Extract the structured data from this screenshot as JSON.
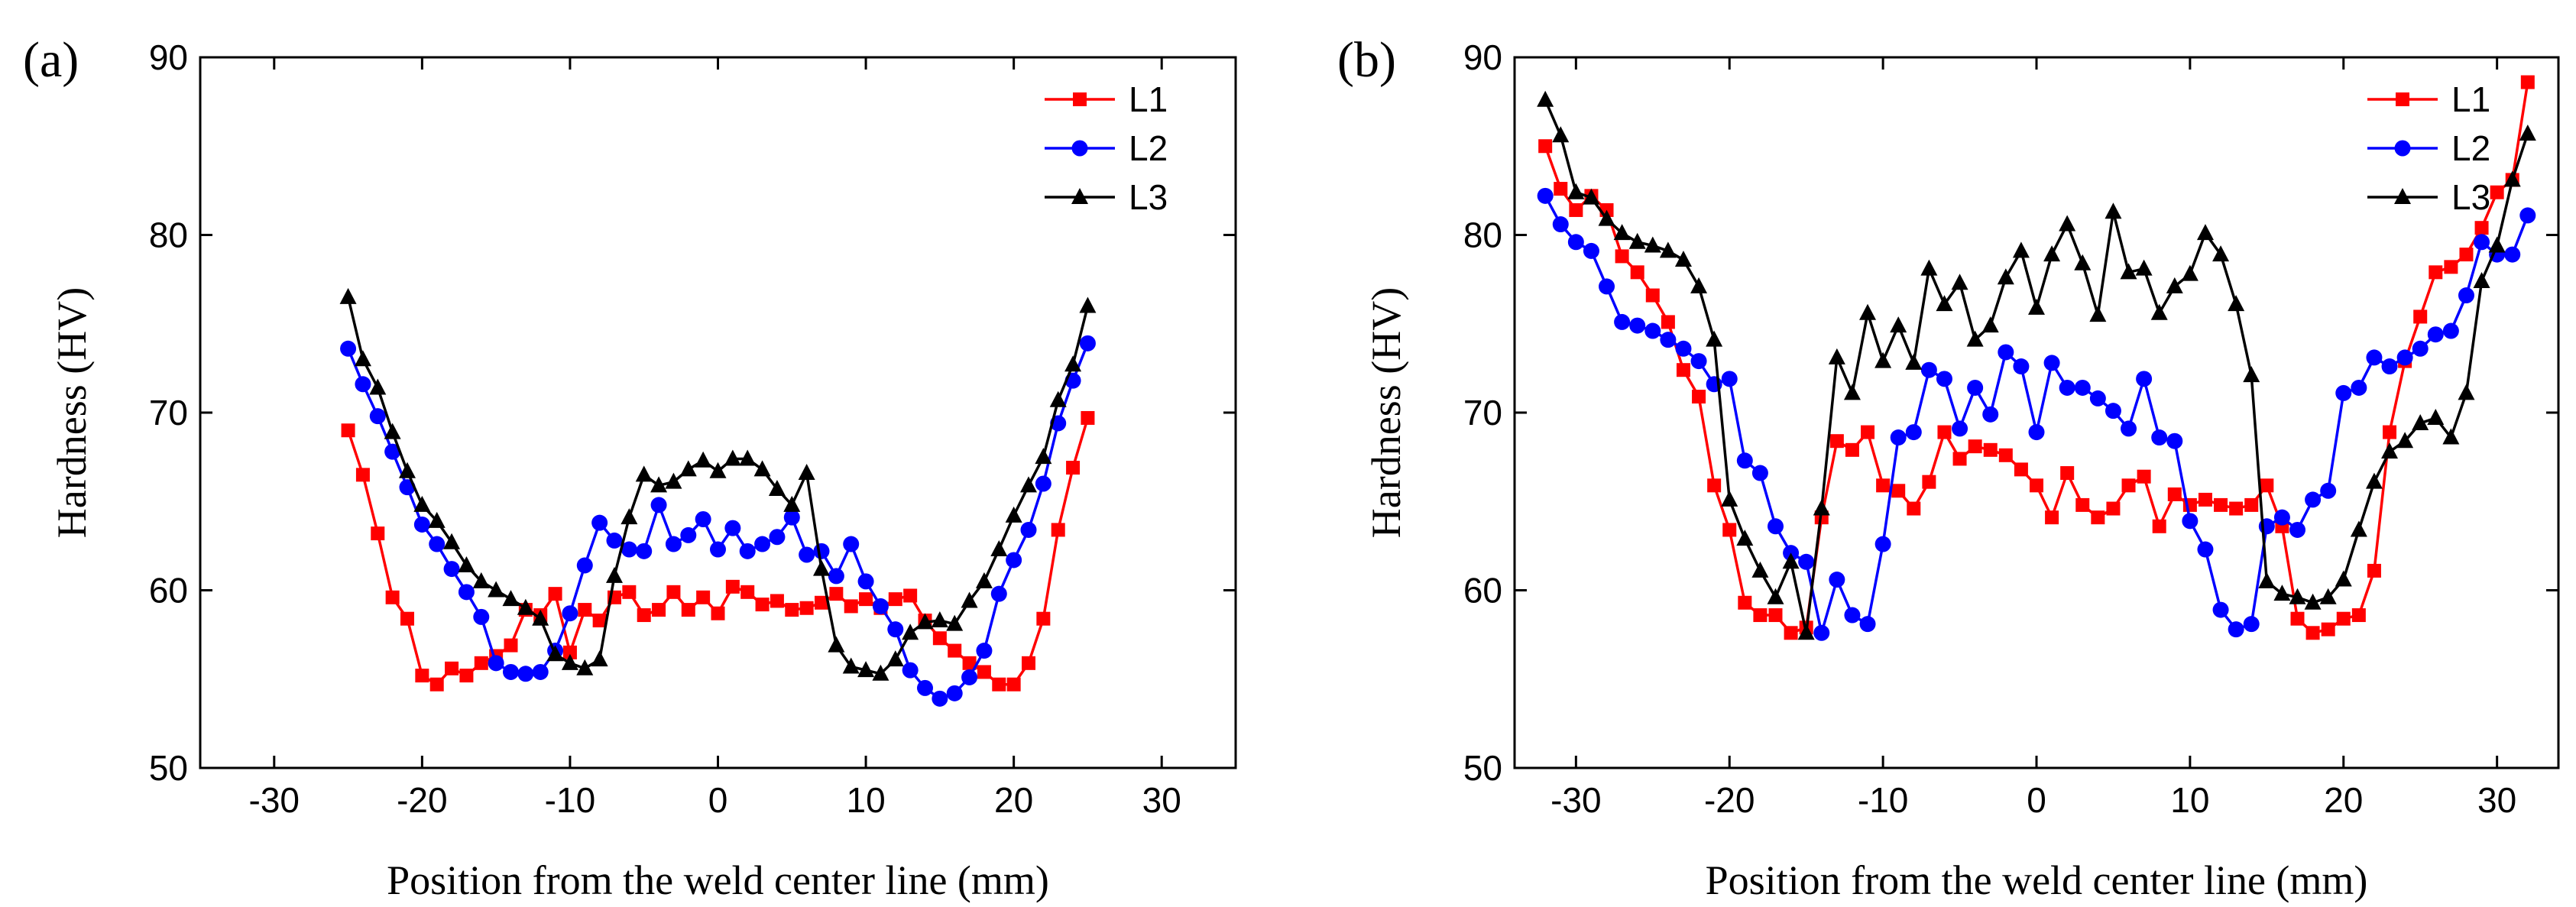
{
  "chart_data": [
    {
      "panel_label": "(a)",
      "type": "line",
      "xlabel": "Position from the weld center line (mm)",
      "ylabel": "Hardness (HV)",
      "xlim": [
        -35,
        35
      ],
      "ylim": [
        50,
        90
      ],
      "xticks": [
        -30,
        -20,
        -10,
        0,
        10,
        20,
        30
      ],
      "yticks": [
        50,
        60,
        70,
        80,
        90
      ],
      "legend_position": "top-right",
      "series": [
        {
          "name": "L1",
          "color": "#ff0000",
          "marker": "square",
          "x": [
            -25,
            -24,
            -23,
            -22,
            -21,
            -20,
            -19,
            -18,
            -17,
            -16,
            -15,
            -14,
            -13,
            -12,
            -11,
            -10,
            -9,
            -8,
            -7,
            -6,
            -5,
            -4,
            -3,
            -2,
            -1,
            0,
            1,
            2,
            3,
            4,
            5,
            6,
            7,
            8,
            9,
            10,
            11,
            12,
            13,
            14,
            15,
            16,
            17,
            18,
            19,
            20,
            21,
            22,
            23,
            24,
            25
          ],
          "y": [
            69.0,
            66.5,
            63.2,
            59.6,
            58.4,
            55.2,
            54.7,
            55.6,
            55.2,
            55.9,
            56.3,
            56.9,
            58.9,
            58.6,
            59.8,
            56.5,
            58.9,
            58.3,
            59.6,
            59.9,
            58.6,
            58.9,
            59.9,
            58.9,
            59.6,
            58.7,
            60.2,
            59.9,
            59.2,
            59.4,
            58.9,
            59.0,
            59.3,
            59.8,
            59.1,
            59.5,
            59.0,
            59.5,
            59.7,
            58.3,
            57.3,
            56.6,
            55.9,
            55.4,
            54.7,
            54.7,
            55.9,
            58.4,
            63.4,
            66.9,
            69.7
          ]
        },
        {
          "name": "L2",
          "color": "#0000ff",
          "marker": "circle",
          "x": [
            -25,
            -24,
            -23,
            -22,
            -21,
            -20,
            -19,
            -18,
            -17,
            -16,
            -15,
            -14,
            -13,
            -12,
            -11,
            -10,
            -9,
            -8,
            -7,
            -6,
            -5,
            -4,
            -3,
            -2,
            -1,
            0,
            1,
            2,
            3,
            4,
            5,
            6,
            7,
            8,
            9,
            10,
            11,
            12,
            13,
            14,
            15,
            16,
            17,
            18,
            19,
            20,
            21,
            22,
            23,
            24,
            25
          ],
          "y": [
            73.6,
            71.6,
            69.8,
            67.8,
            65.8,
            63.7,
            62.6,
            61.2,
            59.9,
            58.5,
            55.9,
            55.4,
            55.3,
            55.4,
            56.6,
            58.7,
            61.4,
            63.8,
            62.8,
            62.3,
            62.2,
            64.8,
            62.6,
            63.1,
            64.0,
            62.3,
            63.5,
            62.2,
            62.6,
            63.0,
            64.1,
            62.0,
            62.2,
            60.8,
            62.6,
            60.5,
            59.1,
            57.8,
            55.5,
            54.5,
            53.9,
            54.2,
            55.1,
            56.6,
            59.8,
            61.7,
            63.4,
            66.0,
            69.4,
            71.8,
            73.9
          ]
        },
        {
          "name": "L3",
          "color": "#000000",
          "marker": "triangle",
          "x": [
            -25,
            -24,
            -23,
            -22,
            -21,
            -20,
            -19,
            -18,
            -17,
            -16,
            -15,
            -14,
            -13,
            -12,
            -11,
            -10,
            -9,
            -8,
            -7,
            -6,
            -5,
            -4,
            -3,
            -2,
            -1,
            0,
            1,
            2,
            3,
            4,
            5,
            6,
            7,
            8,
            9,
            10,
            11,
            12,
            13,
            14,
            15,
            16,
            17,
            18,
            19,
            20,
            21,
            22,
            23,
            24,
            25
          ],
          "y": [
            76.5,
            73.0,
            71.4,
            68.9,
            66.7,
            64.8,
            63.9,
            62.7,
            61.4,
            60.5,
            60.0,
            59.5,
            59.0,
            58.4,
            56.4,
            55.9,
            55.6,
            56.1,
            60.8,
            64.1,
            66.5,
            65.9,
            66.1,
            66.8,
            67.3,
            66.7,
            67.4,
            67.4,
            66.8,
            65.7,
            64.8,
            66.6,
            61.2,
            56.9,
            55.7,
            55.5,
            55.3,
            56.1,
            57.6,
            58.2,
            58.3,
            58.1,
            59.4,
            60.5,
            62.3,
            64.2,
            65.9,
            67.5,
            70.7,
            72.7,
            76.0
          ]
        }
      ]
    },
    {
      "panel_label": "(b)",
      "type": "line",
      "xlabel": "Position from the weld center line (mm)",
      "ylabel": "Hardness (HV)",
      "xlim": [
        -34,
        34
      ],
      "ylim": [
        50,
        90
      ],
      "xticks": [
        -30,
        -20,
        -10,
        0,
        10,
        20,
        30
      ],
      "yticks": [
        50,
        60,
        70,
        80,
        90
      ],
      "legend_position": "top-right",
      "series": [
        {
          "name": "L1",
          "color": "#ff0000",
          "marker": "square",
          "x": [
            -32,
            -31,
            -30,
            -29,
            -28,
            -27,
            -26,
            -25,
            -24,
            -23,
            -22,
            -21,
            -20,
            -19,
            -18,
            -17,
            -16,
            -15,
            -14,
            -13,
            -12,
            -11,
            -10,
            -9,
            -8,
            -7,
            -6,
            -5,
            -4,
            -3,
            -2,
            -1,
            0,
            1,
            2,
            3,
            4,
            5,
            6,
            7,
            8,
            9,
            10,
            11,
            12,
            13,
            14,
            15,
            16,
            17,
            18,
            19,
            20,
            21,
            22,
            23,
            24,
            25,
            26,
            27,
            28,
            29,
            30,
            31,
            32
          ],
          "y": [
            85.0,
            82.6,
            81.4,
            82.2,
            81.4,
            78.8,
            77.9,
            76.6,
            75.1,
            72.4,
            70.9,
            65.9,
            63.4,
            59.3,
            58.6,
            58.6,
            57.6,
            57.9,
            64.1,
            68.4,
            67.9,
            68.9,
            65.9,
            65.6,
            64.6,
            66.1,
            68.9,
            67.4,
            68.1,
            67.9,
            67.6,
            66.8,
            65.9,
            64.1,
            66.6,
            64.8,
            64.1,
            64.6,
            65.9,
            66.4,
            63.6,
            65.4,
            64.8,
            65.1,
            64.8,
            64.6,
            64.8,
            65.9,
            63.6,
            58.4,
            57.6,
            57.8,
            58.4,
            58.6,
            61.1,
            68.9,
            72.9,
            75.4,
            77.9,
            78.2,
            78.9,
            80.4,
            82.4,
            83.1,
            88.6
          ]
        },
        {
          "name": "L2",
          "color": "#0000ff",
          "marker": "circle",
          "x": [
            -32,
            -31,
            -30,
            -29,
            -28,
            -27,
            -26,
            -25,
            -24,
            -23,
            -22,
            -21,
            -20,
            -19,
            -18,
            -17,
            -16,
            -15,
            -14,
            -13,
            -12,
            -11,
            -10,
            -9,
            -8,
            -7,
            -6,
            -5,
            -4,
            -3,
            -2,
            -1,
            0,
            1,
            2,
            3,
            4,
            5,
            6,
            7,
            8,
            9,
            10,
            11,
            12,
            13,
            14,
            15,
            16,
            17,
            18,
            19,
            20,
            21,
            22,
            23,
            24,
            25,
            26,
            27,
            28,
            29,
            30,
            31,
            32
          ],
          "y": [
            82.2,
            80.6,
            79.6,
            79.1,
            77.1,
            75.1,
            74.9,
            74.6,
            74.1,
            73.6,
            72.9,
            71.6,
            71.9,
            67.3,
            66.6,
            63.6,
            62.1,
            61.6,
            57.6,
            60.6,
            58.6,
            58.1,
            62.6,
            68.6,
            68.9,
            72.4,
            71.9,
            69.1,
            71.4,
            69.9,
            73.4,
            72.6,
            68.9,
            72.8,
            71.4,
            71.4,
            70.8,
            70.1,
            69.1,
            71.9,
            68.6,
            68.4,
            63.9,
            62.3,
            58.9,
            57.8,
            58.1,
            63.6,
            64.1,
            63.4,
            65.1,
            65.6,
            71.1,
            71.4,
            73.1,
            72.6,
            73.1,
            73.6,
            74.4,
            74.6,
            76.6,
            79.6,
            78.9,
            78.9,
            81.1
          ]
        },
        {
          "name": "L3",
          "color": "#000000",
          "marker": "triangle",
          "x": [
            -32,
            -31,
            -30,
            -29,
            -28,
            -27,
            -26,
            -25,
            -24,
            -23,
            -22,
            -21,
            -20,
            -19,
            -18,
            -17,
            -16,
            -15,
            -14,
            -13,
            -12,
            -11,
            -10,
            -9,
            -8,
            -7,
            -6,
            -5,
            -4,
            -3,
            -2,
            -1,
            0,
            1,
            2,
            3,
            4,
            5,
            6,
            7,
            8,
            9,
            10,
            11,
            12,
            13,
            14,
            15,
            16,
            17,
            18,
            19,
            20,
            21,
            22,
            23,
            24,
            25,
            26,
            27,
            28,
            29,
            30,
            31,
            32
          ],
          "y": [
            87.6,
            85.6,
            82.4,
            82.1,
            80.9,
            80.1,
            79.6,
            79.4,
            79.1,
            78.6,
            77.1,
            74.1,
            65.1,
            62.9,
            61.1,
            59.6,
            61.6,
            57.6,
            64.6,
            73.1,
            71.1,
            75.6,
            72.9,
            74.9,
            72.8,
            78.1,
            76.1,
            77.3,
            74.1,
            74.9,
            77.6,
            79.1,
            75.9,
            78.9,
            80.6,
            78.4,
            75.5,
            81.3,
            77.9,
            78.1,
            75.6,
            77.1,
            77.8,
            80.1,
            78.9,
            76.1,
            72.1,
            60.5,
            59.8,
            59.6,
            59.3,
            59.6,
            60.6,
            63.4,
            66.1,
            67.8,
            68.4,
            69.4,
            69.7,
            68.6,
            71.1,
            77.4,
            79.4,
            83.1,
            85.7
          ]
        }
      ]
    }
  ]
}
